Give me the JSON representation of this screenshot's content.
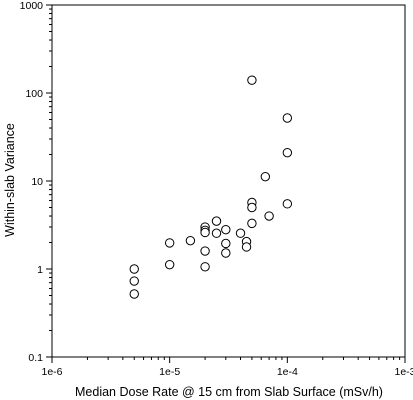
{
  "chart_data": {
    "type": "scatter",
    "xlabel": "Median Dose Rate @ 15 cm from Slab Surface (mSv/h)",
    "ylabel": "Within-slab Variance",
    "xscale": "log",
    "yscale": "log",
    "xlim": [
      1e-06,
      0.001
    ],
    "ylim": [
      0.1,
      1000
    ],
    "xticks": [
      {
        "value": 1e-06,
        "label": "1e-6"
      },
      {
        "value": 1e-05,
        "label": "1e-5"
      },
      {
        "value": 0.0001,
        "label": "1e-4"
      },
      {
        "value": 0.001,
        "label": "1e-3"
      }
    ],
    "yticks": [
      {
        "value": 0.1,
        "label": "0.1"
      },
      {
        "value": 1,
        "label": "1"
      },
      {
        "value": 10,
        "label": "10"
      },
      {
        "value": 100,
        "label": "100"
      },
      {
        "value": 1000,
        "label": "1000"
      }
    ],
    "marker": "open-circle",
    "grid": false,
    "points": [
      {
        "x": 5e-06,
        "y": 1.0
      },
      {
        "x": 5e-06,
        "y": 0.73
      },
      {
        "x": 5e-06,
        "y": 0.52
      },
      {
        "x": 1e-05,
        "y": 1.98
      },
      {
        "x": 1e-05,
        "y": 1.12
      },
      {
        "x": 1.5e-05,
        "y": 2.1
      },
      {
        "x": 2e-05,
        "y": 3.0
      },
      {
        "x": 2e-05,
        "y": 2.75
      },
      {
        "x": 2e-05,
        "y": 2.6
      },
      {
        "x": 2e-05,
        "y": 1.6
      },
      {
        "x": 2e-05,
        "y": 1.06
      },
      {
        "x": 2.5e-05,
        "y": 3.5
      },
      {
        "x": 2.5e-05,
        "y": 2.55
      },
      {
        "x": 3e-05,
        "y": 2.8
      },
      {
        "x": 3e-05,
        "y": 1.95
      },
      {
        "x": 3e-05,
        "y": 1.52
      },
      {
        "x": 4e-05,
        "y": 2.55
      },
      {
        "x": 4.5e-05,
        "y": 2.05
      },
      {
        "x": 4.5e-05,
        "y": 1.78
      },
      {
        "x": 5e-05,
        "y": 140
      },
      {
        "x": 5e-05,
        "y": 5.7
      },
      {
        "x": 5e-05,
        "y": 5.0
      },
      {
        "x": 5e-05,
        "y": 3.3
      },
      {
        "x": 6.5e-05,
        "y": 11.2
      },
      {
        "x": 7e-05,
        "y": 4.0
      },
      {
        "x": 0.0001,
        "y": 52
      },
      {
        "x": 0.0001,
        "y": 21
      },
      {
        "x": 0.0001,
        "y": 5.5
      }
    ]
  }
}
